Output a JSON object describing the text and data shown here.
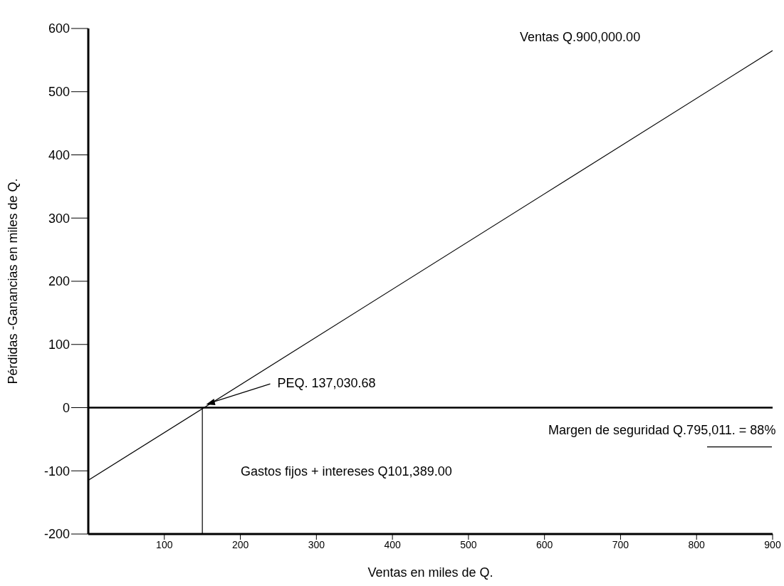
{
  "chart_data": {
    "type": "line",
    "xlabel": "Ventas en miles de Q.",
    "ylabel": "Pérdidas -Ganancias en miles de Q.",
    "xlim": [
      0,
      900
    ],
    "ylim": [
      -200,
      600
    ],
    "xticks": [
      100,
      200,
      300,
      400,
      500,
      600,
      700,
      800,
      900
    ],
    "yticks": [
      -200,
      -100,
      0,
      100,
      200,
      300,
      400,
      500,
      600
    ],
    "series": [
      {
        "type": "line",
        "color": "#000000",
        "x": [
          0,
          900
        ],
        "values": [
          -115,
          565
        ]
      },
      {
        "type": "line",
        "color": "#000000",
        "x": [
          150,
          150
        ],
        "values": [
          0,
          -200
        ]
      }
    ],
    "ref_lines": [
      {
        "axis": "y",
        "value": 0,
        "color": "#000000"
      }
    ],
    "annotations": [
      "Ventas Q.900,000.00",
      {
        "text": "PEQ. 137,030.68",
        "x": 155,
        "y": 5
      },
      "Margen de seguridad Q.795,011.  = 88%",
      "Gastos fijos + intereses Q101,389.00"
    ]
  }
}
